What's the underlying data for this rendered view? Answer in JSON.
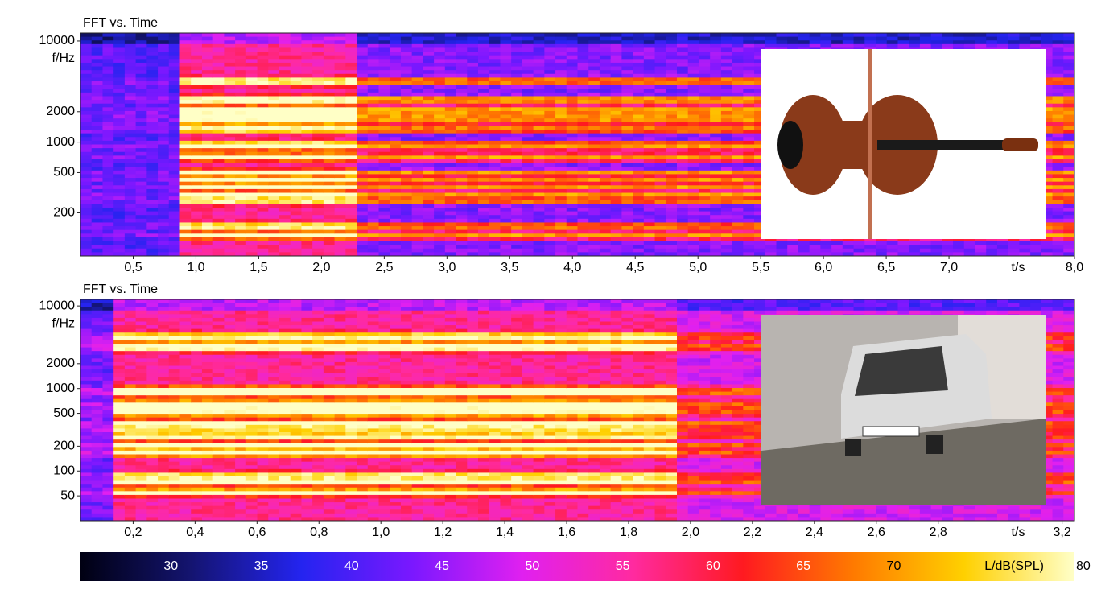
{
  "chart_data": [
    {
      "type": "spectrogram",
      "title": "FFT vs. Time",
      "ylabel": "f/Hz",
      "xlabel": "t/s",
      "yscale": "log",
      "xlim": [
        0.08,
        8.0
      ],
      "ylim": [
        75,
        12000
      ],
      "xticks": [
        {
          "value": 0.5,
          "label": "0,5"
        },
        {
          "value": 1.0,
          "label": "1,0"
        },
        {
          "value": 1.5,
          "label": "1,5"
        },
        {
          "value": 2.0,
          "label": "2,0"
        },
        {
          "value": 2.5,
          "label": "2,5"
        },
        {
          "value": 3.0,
          "label": "3,0"
        },
        {
          "value": 3.5,
          "label": "3,5"
        },
        {
          "value": 4.0,
          "label": "4,0"
        },
        {
          "value": 4.5,
          "label": "4,5"
        },
        {
          "value": 5.0,
          "label": "5,0"
        },
        {
          "value": 5.5,
          "label": "5,5"
        },
        {
          "value": 6.0,
          "label": "6,0"
        },
        {
          "value": 6.5,
          "label": "6,5"
        },
        {
          "value": 7.0,
          "label": "7,0"
        },
        {
          "value": 8.0,
          "label": "8,0"
        }
      ],
      "yticks": [
        200,
        500,
        1000,
        2000,
        10000
      ]
    },
    {
      "type": "spectrogram",
      "title": "FFT vs. Time",
      "ylabel": "f/Hz",
      "xlabel": "t/s",
      "yscale": "log",
      "xlim": [
        0.03,
        3.24
      ],
      "ylim": [
        25,
        12000
      ],
      "xticks": [
        {
          "value": 0.2,
          "label": "0,2"
        },
        {
          "value": 0.4,
          "label": "0,4"
        },
        {
          "value": 0.6,
          "label": "0,6"
        },
        {
          "value": 0.8,
          "label": "0,8"
        },
        {
          "value": 1.0,
          "label": "1,0"
        },
        {
          "value": 1.2,
          "label": "1,2"
        },
        {
          "value": 1.4,
          "label": "1,4"
        },
        {
          "value": 1.6,
          "label": "1,6"
        },
        {
          "value": 1.8,
          "label": "1,8"
        },
        {
          "value": 2.0,
          "label": "2,0"
        },
        {
          "value": 2.2,
          "label": "2,2"
        },
        {
          "value": 2.4,
          "label": "2,4"
        },
        {
          "value": 2.6,
          "label": "2,6"
        },
        {
          "value": 2.8,
          "label": "2,8"
        },
        {
          "value": 3.2,
          "label": "3,2"
        }
      ],
      "yticks": [
        50,
        100,
        200,
        500,
        1000,
        2000,
        10000
      ]
    },
    {
      "type": "colorbar",
      "label": "L/dB(SPL)",
      "clim": [
        25,
        80
      ],
      "ticks": [
        30,
        35,
        40,
        45,
        50,
        55,
        60,
        65,
        70,
        80
      ],
      "colormap": [
        "#000012",
        "#141470",
        "#2424f0",
        "#7a18ff",
        "#e020f0",
        "#ff2aa0",
        "#ff1a20",
        "#ff7a00",
        "#ffd000",
        "#ffffc8"
      ]
    }
  ]
}
